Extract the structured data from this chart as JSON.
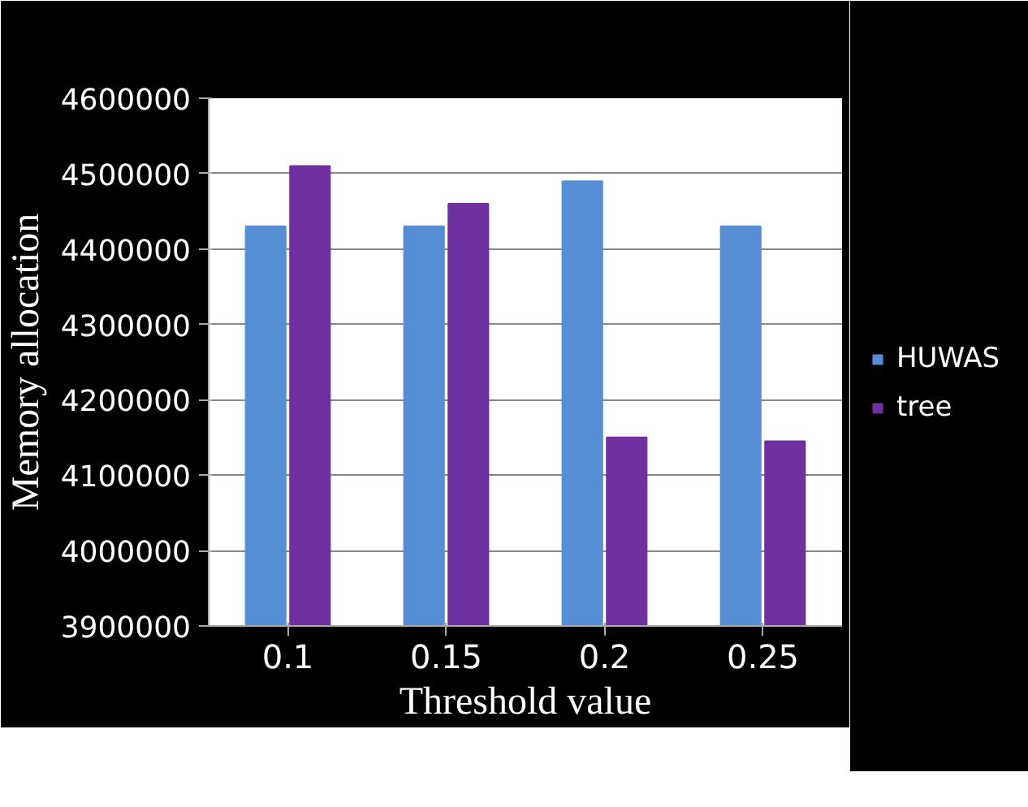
{
  "chart_data": {
    "type": "bar",
    "xlabel": "Threshold value",
    "ylabel": "Memory allocation",
    "categories": [
      "0.1",
      "0.15",
      "0.2",
      "0.25"
    ],
    "series": [
      {
        "name": "HUWAS",
        "color": "#558ed5",
        "values": [
          4430000,
          4430000,
          4490000,
          4430000
        ]
      },
      {
        "name": "tree",
        "color": "#7030a0",
        "values": [
          4510000,
          4460000,
          4150000,
          4145000
        ]
      }
    ],
    "ylim": [
      3900000,
      4600000
    ],
    "yticks": [
      3900000,
      4000000,
      4100000,
      4200000,
      4300000,
      4400000,
      4500000,
      4600000
    ],
    "grid": "y",
    "legend": "right"
  }
}
